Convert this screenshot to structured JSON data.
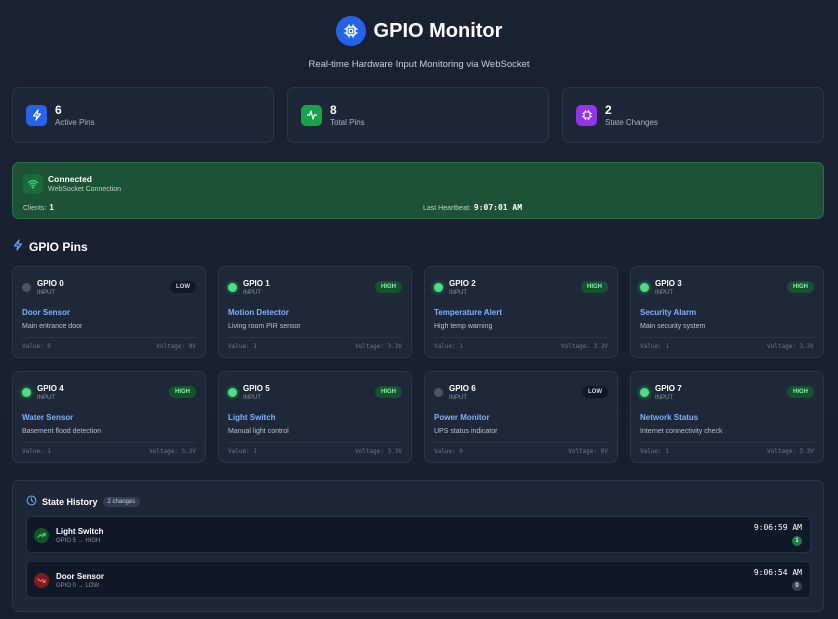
{
  "header": {
    "title": "GPIO Monitor",
    "subtitle": "Real-time Hardware Input Monitoring via WebSocket"
  },
  "stats": [
    {
      "value": "6",
      "label": "Active Pins",
      "icon": "bolt-icon",
      "color": "#2563eb"
    },
    {
      "value": "8",
      "label": "Total Pins",
      "icon": "activity-icon",
      "color": "#16a34a"
    },
    {
      "value": "2",
      "label": "State Changes",
      "icon": "chip-icon",
      "color": "#9333ea"
    }
  ],
  "connection": {
    "status": "Connected",
    "subtitle": "WebSocket Connection",
    "clients_label": "Clients:",
    "clients_value": "1",
    "heartbeat_label": "Last Heartbeat:",
    "heartbeat_value": "9:07:01 AM"
  },
  "pins_section": {
    "title": "GPIO Pins"
  },
  "pins": [
    {
      "name": "GPIO 0",
      "mode": "INPUT",
      "state": "LOW",
      "label": "Door Sensor",
      "desc": "Main entrance door",
      "value": "Value: 0",
      "voltage": "Voltage: 0V"
    },
    {
      "name": "GPIO 1",
      "mode": "INPUT",
      "state": "HIGH",
      "label": "Motion Detector",
      "desc": "Living room PIR sensor",
      "value": "Value: 1",
      "voltage": "Voltage: 3.3V"
    },
    {
      "name": "GPIO 2",
      "mode": "INPUT",
      "state": "HIGH",
      "label": "Temperature Alert",
      "desc": "High temp warning",
      "value": "Value: 1",
      "voltage": "Voltage: 3.3V"
    },
    {
      "name": "GPIO 3",
      "mode": "INPUT",
      "state": "HIGH",
      "label": "Security Alarm",
      "desc": "Main security system",
      "value": "Value: 1",
      "voltage": "Voltage: 3.3V"
    },
    {
      "name": "GPIO 4",
      "mode": "INPUT",
      "state": "HIGH",
      "label": "Water Sensor",
      "desc": "Basement flood detection",
      "value": "Value: 1",
      "voltage": "Voltage: 3.3V"
    },
    {
      "name": "GPIO 5",
      "mode": "INPUT",
      "state": "HIGH",
      "label": "Light Switch",
      "desc": "Manual light control",
      "value": "Value: 1",
      "voltage": "Voltage: 3.3V"
    },
    {
      "name": "GPIO 6",
      "mode": "INPUT",
      "state": "LOW",
      "label": "Power Monitor",
      "desc": "UPS status indicator",
      "value": "Value: 0",
      "voltage": "Voltage: 0V"
    },
    {
      "name": "GPIO 7",
      "mode": "INPUT",
      "state": "HIGH",
      "label": "Network Status",
      "desc": "Internet connectivity check",
      "value": "Value: 1",
      "voltage": "Voltage: 3.3V"
    }
  ],
  "history": {
    "title": "State History",
    "count": "2 changes",
    "items": [
      {
        "name": "Light Switch",
        "sub": "GPIO 5 → HIGH",
        "time": "9:06:59 AM",
        "value": "1",
        "state": "high"
      },
      {
        "name": "Door Sensor",
        "sub": "GPIO 0 → LOW",
        "time": "9:06:54 AM",
        "value": "0",
        "state": "low"
      }
    ]
  }
}
